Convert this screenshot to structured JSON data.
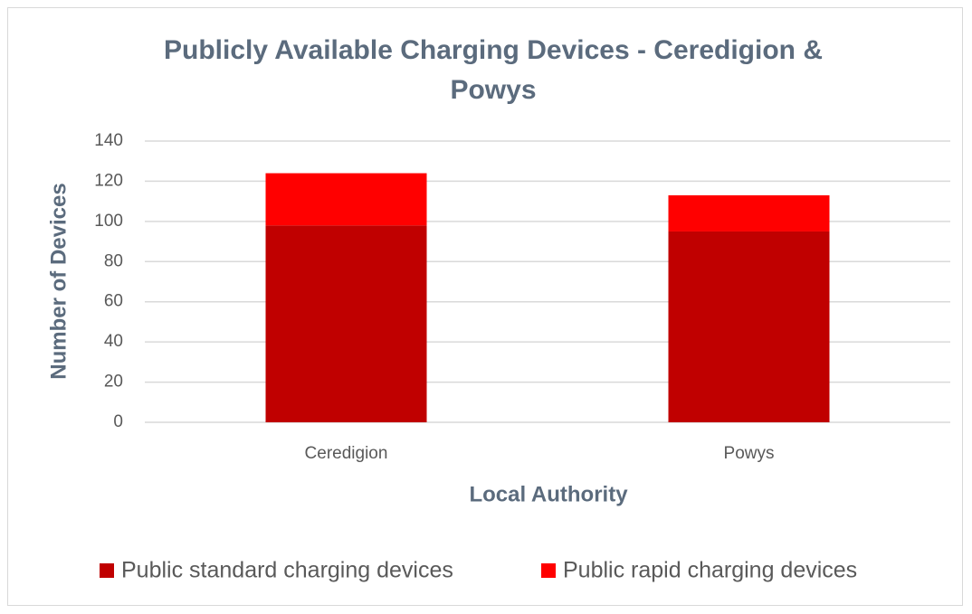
{
  "chart_data": {
    "type": "stacked_bar",
    "title": "Publicly Available Charging Devices - Ceredigion & Powys",
    "x_label": "Local Authority",
    "y_label": "Number of Devices",
    "categories": [
      "Ceredigion",
      "Powys"
    ],
    "series": [
      {
        "name": "Public standard charging devices",
        "color": "#c00000",
        "values": [
          98,
          95
        ]
      },
      {
        "name": "Public rapid charging devices",
        "color": "#ff0000",
        "values": [
          26,
          18
        ]
      }
    ],
    "ylim": [
      0,
      140
    ],
    "yticks": [
      0,
      20,
      40,
      60,
      80,
      100,
      120,
      140
    ],
    "grid": true,
    "legend": "bottom"
  }
}
